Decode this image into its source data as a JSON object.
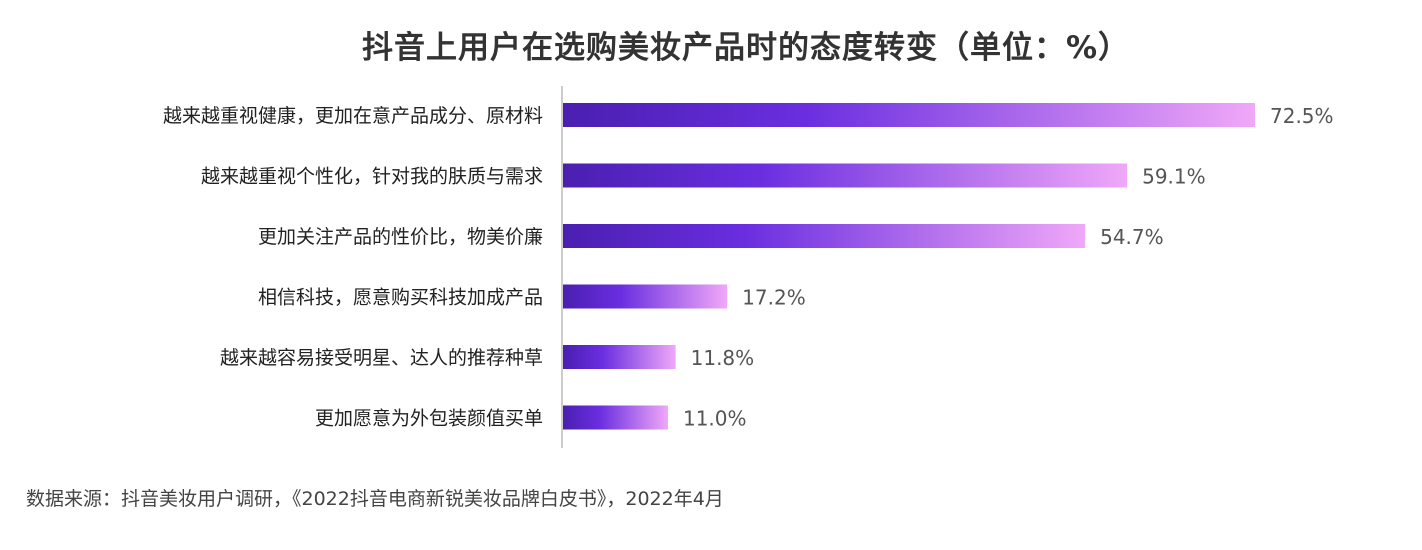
{
  "chart_data": {
    "type": "bar",
    "orientation": "horizontal",
    "title": "抖音上用户在选购美妆产品时的态度转变（单位：%）",
    "categories": [
      "越来越重视健康，更加在意产品成分、原材料",
      "越来越重视个性化，针对我的肤质与需求",
      "更加关注产品的性价比，物美价廉",
      "相信科技，愿意购买科技加成产品",
      "越来越容易接受明星、达人的推荐种草",
      "更加愿意为外包装颜值买单"
    ],
    "values": [
      72.5,
      59.1,
      54.7,
      17.2,
      11.8,
      11.0
    ],
    "value_labels": [
      "72.5%",
      "59.1%",
      "54.7%",
      "17.2%",
      "11.8%",
      "11.0%"
    ],
    "xlim": [
      0,
      72.5
    ],
    "grid": false,
    "legend": "none",
    "colors": {
      "gradient_start": "#4a1fb0",
      "gradient_mid": "#6a2ee0",
      "gradient_end": "#f0a8f8",
      "axis": "#bbbbbb"
    }
  },
  "source": "数据来源：抖音美妆用户调研，《2022抖音电商新锐美妆品牌白皮书》，2022年4月"
}
